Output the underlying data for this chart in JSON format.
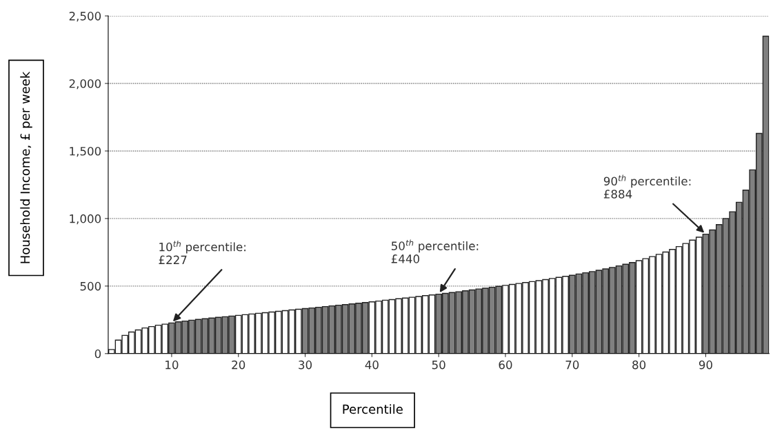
{
  "chart_data": {
    "type": "bar",
    "xlabel": "Percentile",
    "ylabel": "Household Income, £ per week",
    "x": [
      1,
      2,
      3,
      4,
      5,
      6,
      7,
      8,
      9,
      10,
      11,
      12,
      13,
      14,
      15,
      16,
      17,
      18,
      19,
      20,
      21,
      22,
      23,
      24,
      25,
      26,
      27,
      28,
      29,
      30,
      31,
      32,
      33,
      34,
      35,
      36,
      37,
      38,
      39,
      40,
      41,
      42,
      43,
      44,
      45,
      46,
      47,
      48,
      49,
      50,
      51,
      52,
      53,
      54,
      55,
      56,
      57,
      58,
      59,
      60,
      61,
      62,
      63,
      64,
      65,
      66,
      67,
      68,
      69,
      70,
      71,
      72,
      73,
      74,
      75,
      76,
      77,
      78,
      79,
      80,
      81,
      82,
      83,
      84,
      85,
      86,
      87,
      88,
      89,
      90,
      91,
      92,
      93,
      94,
      95,
      96,
      97,
      98,
      99
    ],
    "values": [
      30,
      100,
      135,
      160,
      175,
      190,
      200,
      210,
      218,
      227,
      235,
      241,
      247,
      253,
      258,
      263,
      268,
      273,
      278,
      283,
      288,
      293,
      298,
      303,
      308,
      313,
      318,
      323,
      328,
      333,
      338,
      343,
      348,
      353,
      358,
      363,
      368,
      373,
      378,
      383,
      389,
      395,
      400,
      406,
      411,
      417,
      423,
      429,
      434,
      440,
      446,
      452,
      458,
      465,
      471,
      478,
      484,
      491,
      498,
      505,
      512,
      519,
      526,
      533,
      540,
      548,
      556,
      564,
      572,
      580,
      589,
      598,
      607,
      617,
      627,
      638,
      649,
      661,
      674,
      688,
      703,
      718,
      735,
      752,
      771,
      792,
      815,
      840,
      862,
      884,
      915,
      955,
      1000,
      1050,
      1120,
      1210,
      1360,
      1630,
      2350
    ],
    "colors": [
      "#ffffff",
      "#ffffff",
      "#ffffff",
      "#ffffff",
      "#ffffff",
      "#ffffff",
      "#ffffff",
      "#ffffff",
      "#ffffff",
      "#808080",
      "#808080",
      "#808080",
      "#808080",
      "#808080",
      "#808080",
      "#808080",
      "#808080",
      "#808080",
      "#808080",
      "#ffffff",
      "#ffffff",
      "#ffffff",
      "#ffffff",
      "#ffffff",
      "#ffffff",
      "#ffffff",
      "#ffffff",
      "#ffffff",
      "#ffffff",
      "#808080",
      "#808080",
      "#808080",
      "#808080",
      "#808080",
      "#808080",
      "#808080",
      "#808080",
      "#808080",
      "#808080",
      "#ffffff",
      "#ffffff",
      "#ffffff",
      "#ffffff",
      "#ffffff",
      "#ffffff",
      "#ffffff",
      "#ffffff",
      "#ffffff",
      "#ffffff",
      "#808080",
      "#808080",
      "#808080",
      "#808080",
      "#808080",
      "#808080",
      "#808080",
      "#808080",
      "#808080",
      "#808080",
      "#ffffff",
      "#ffffff",
      "#ffffff",
      "#ffffff",
      "#ffffff",
      "#ffffff",
      "#ffffff",
      "#ffffff",
      "#ffffff",
      "#ffffff",
      "#808080",
      "#808080",
      "#808080",
      "#808080",
      "#808080",
      "#808080",
      "#808080",
      "#808080",
      "#808080",
      "#808080",
      "#ffffff",
      "#ffffff",
      "#ffffff",
      "#ffffff",
      "#ffffff",
      "#ffffff",
      "#ffffff",
      "#ffffff",
      "#ffffff",
      "#ffffff",
      "#808080",
      "#808080",
      "#808080",
      "#808080",
      "#808080",
      "#808080",
      "#808080",
      "#808080",
      "#808080",
      "#808080"
    ],
    "xlim": [
      0.5,
      99.5
    ],
    "xticks": [
      10,
      20,
      30,
      40,
      50,
      60,
      70,
      80,
      90
    ],
    "ylim": [
      0,
      2500
    ],
    "yticks": [
      {
        "value": 0,
        "label": "0"
      },
      {
        "value": 500,
        "label": "500"
      },
      {
        "value": 1000,
        "label": "1,000"
      },
      {
        "value": 1500,
        "label": "1,500"
      },
      {
        "value": 2000,
        "label": "2,000"
      },
      {
        "value": 2500,
        "label": "2,500"
      }
    ],
    "grid": "y",
    "annotations": [
      {
        "text": "10$^{th}$ percentile:\n£227",
        "x": 10,
        "y": 227
      },
      {
        "text": "50$^{th}$ percentile:\n£440",
        "x": 50,
        "y": 440
      },
      {
        "text": "90$^{th}$ percentile:\n£884",
        "x": 90,
        "y": 884
      }
    ]
  }
}
